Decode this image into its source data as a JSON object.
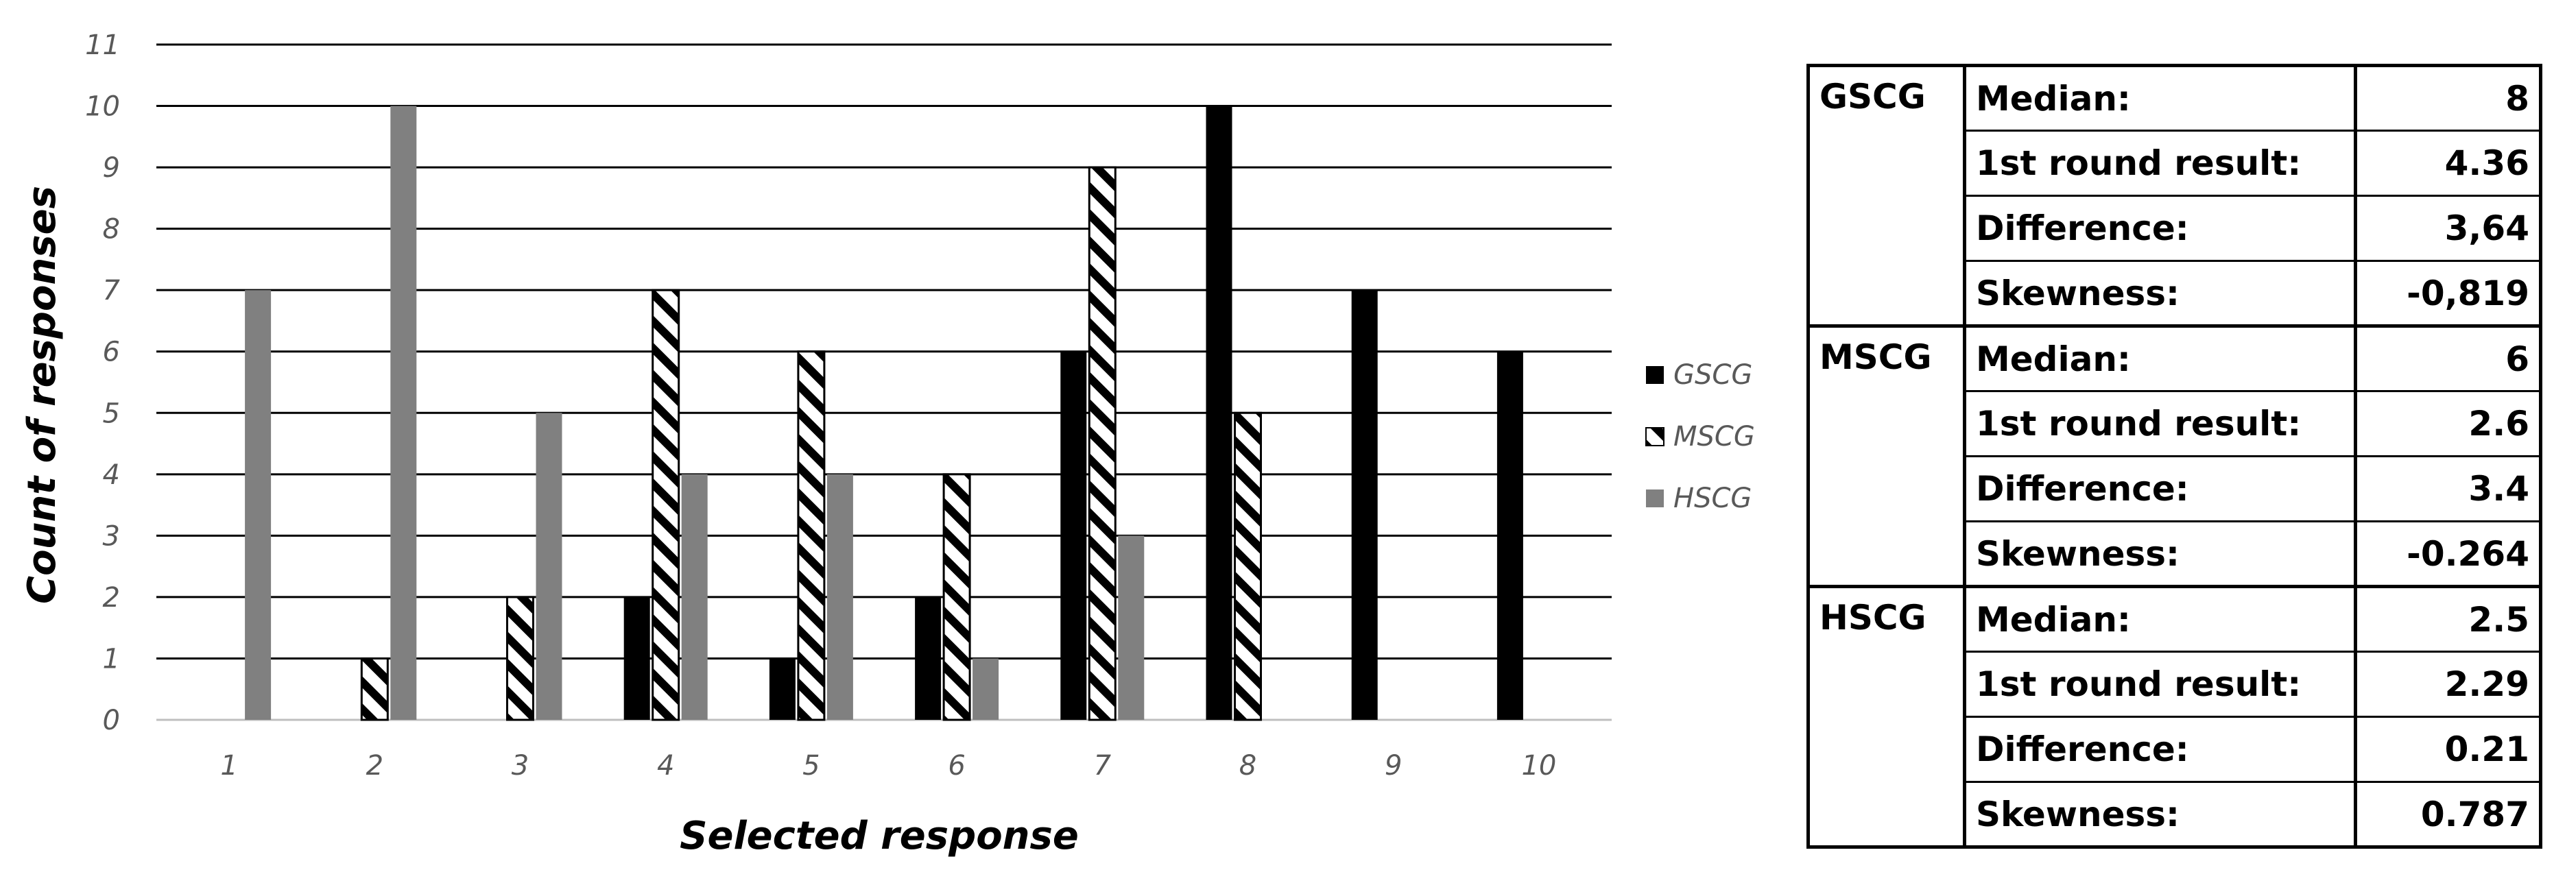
{
  "chart_data": {
    "type": "bar",
    "xlabel": "Selected response",
    "ylabel": "Count of responses",
    "ylim": [
      0,
      11
    ],
    "yticks": [
      "0",
      "1",
      "2",
      "3",
      "4",
      "5",
      "6",
      "7",
      "8",
      "9",
      "10",
      "11"
    ],
    "categories": [
      "1",
      "2",
      "3",
      "4",
      "5",
      "6",
      "7",
      "8",
      "9",
      "10"
    ],
    "grid": true,
    "legend_position": "right",
    "series": [
      {
        "name": "GSCG",
        "fill": "solid-black",
        "color": "#000000",
        "values": [
          0,
          0,
          0,
          2,
          1,
          2,
          6,
          10,
          7,
          6
        ]
      },
      {
        "name": "MSCG",
        "fill": "diagonal-hatch",
        "color": "#000000",
        "values": [
          0,
          1,
          2,
          7,
          6,
          4,
          9,
          5,
          0,
          0
        ]
      },
      {
        "name": "HSCG",
        "fill": "solid-gray",
        "color": "#808080",
        "values": [
          7,
          10,
          5,
          4,
          4,
          1,
          3,
          0,
          0,
          0
        ]
      }
    ]
  },
  "stats_table": {
    "groups": [
      {
        "name": "GSCG",
        "rows": [
          {
            "label": "Median:",
            "value": "8"
          },
          {
            "label": "1st round result:",
            "value": "4.36"
          },
          {
            "label": "Difference:",
            "value": "3,64"
          },
          {
            "label": "Skewness:",
            "value": "-0,819"
          }
        ]
      },
      {
        "name": "MSCG",
        "rows": [
          {
            "label": "Median:",
            "value": "6"
          },
          {
            "label": "1st round result:",
            "value": "2.6"
          },
          {
            "label": "Difference:",
            "value": "3.4"
          },
          {
            "label": "Skewness:",
            "value": "-0.264"
          }
        ]
      },
      {
        "name": "HSCG",
        "rows": [
          {
            "label": "Median:",
            "value": "2.5"
          },
          {
            "label": "1st round result:",
            "value": "2.29"
          },
          {
            "label": "Difference:",
            "value": "0.21"
          },
          {
            "label": "Skewness:",
            "value": "0.787"
          }
        ]
      }
    ]
  }
}
